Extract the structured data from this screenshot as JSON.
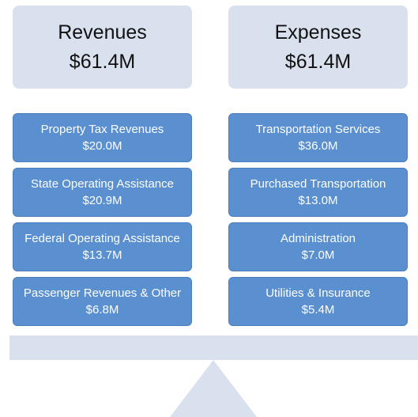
{
  "revenues": {
    "title": "Revenues",
    "total": "$61.4M",
    "items": [
      {
        "label": "Property Tax Revenues",
        "value": "$20.0M"
      },
      {
        "label": "State Operating Assistance",
        "value": "$20.9M"
      },
      {
        "label": "Federal Operating Assistance",
        "value": "$13.7M"
      },
      {
        "label": "Passenger Revenues & Other",
        "value": "$6.8M"
      }
    ]
  },
  "expenses": {
    "title": "Expenses",
    "total": "$61.4M",
    "items": [
      {
        "label": "Transportation Services",
        "value": "$36.0M"
      },
      {
        "label": "Purchased Transportation",
        "value": "$13.0M"
      },
      {
        "label": "Administration",
        "value": "$7.0M"
      },
      {
        "label": "Utilities & Insurance",
        "value": "$5.4M"
      }
    ]
  }
}
